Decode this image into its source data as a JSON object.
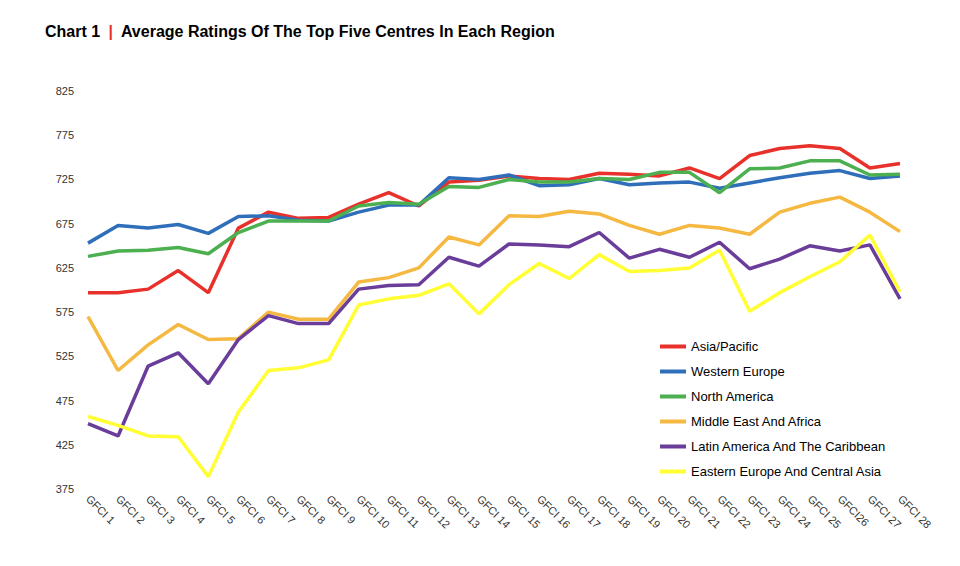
{
  "chart_data": {
    "type": "line",
    "title": "Chart 1 | Average Ratings Of The Top Five Centres In Each Region",
    "categories": [
      "GFCI 1",
      "GFCI 2",
      "GFCI 3",
      "GFCI 4",
      "GFCI 5",
      "GFCI 6",
      "GFCI 7",
      "GFCI 8",
      "GFCI 9",
      "GFCI 10",
      "GFCI 11",
      "GFCI 12",
      "GFCI 13",
      "GFCI 14",
      "GFCI 15",
      "GFCI 16",
      "GFCI 17",
      "GFCI 18",
      "GFCI 19",
      "GFCI 20",
      "GFCI 21",
      "GFCI 22",
      "GFCI 23",
      "GFCI 24",
      "GFCI 25",
      "GFCI26",
      "GFCI 27",
      "GFCI 28"
    ],
    "series": [
      {
        "name": "Asia/Pacific",
        "color": "#e8312a",
        "values": [
          597,
          597,
          601,
          622,
          597,
          670,
          688,
          681,
          682,
          697,
          710,
          695,
          722,
          724,
          729,
          726,
          725,
          732,
          731,
          729,
          738,
          726,
          752,
          760,
          763,
          760,
          738,
          743
        ]
      },
      {
        "name": "Western Europe",
        "color": "#2f6fba",
        "values": [
          653,
          673,
          670,
          674,
          664,
          683,
          684,
          679,
          678,
          688,
          696,
          696,
          727,
          725,
          730,
          718,
          719,
          726,
          719,
          721,
          722,
          715,
          721,
          727,
          732,
          735,
          726,
          729
        ]
      },
      {
        "name": "North America",
        "color": "#4caf50",
        "values": [
          638,
          644,
          645,
          648,
          641,
          665,
          678,
          678,
          678,
          695,
          699,
          697,
          717,
          716,
          725,
          722,
          722,
          726,
          725,
          733,
          733,
          710,
          737,
          738,
          746,
          746,
          730,
          731
        ]
      },
      {
        "name": "Middle East And Africa",
        "color": "#f5b942",
        "values": [
          570,
          509,
          538,
          561,
          544,
          545,
          575,
          567,
          567,
          609,
          614,
          625,
          660,
          651,
          684,
          683,
          689,
          686,
          673,
          663,
          673,
          670,
          663,
          688,
          698,
          705,
          688,
          666
        ]
      },
      {
        "name": "Latin America And The Caribbean",
        "color": "#6a3d9a",
        "values": [
          449,
          435,
          514,
          529,
          494,
          544,
          571,
          562,
          562,
          601,
          605,
          606,
          637,
          627,
          652,
          651,
          649,
          665,
          636,
          646,
          637,
          654,
          624,
          635,
          650,
          644,
          651,
          590
        ]
      },
      {
        "name": "Eastern Europe And Central Asia",
        "color": "#ffff33",
        "values": [
          457,
          447,
          435,
          434,
          389,
          462,
          509,
          512,
          521,
          583,
          590,
          594,
          607,
          573,
          606,
          630,
          613,
          640,
          621,
          622,
          625,
          645,
          576,
          597,
          615,
          632,
          662,
          598
        ]
      }
    ],
    "ylim": [
      375,
      825
    ],
    "yticks": [
      375,
      425,
      475,
      525,
      575,
      625,
      675,
      725,
      775,
      825
    ],
    "grid": false,
    "legend": "lower right"
  }
}
